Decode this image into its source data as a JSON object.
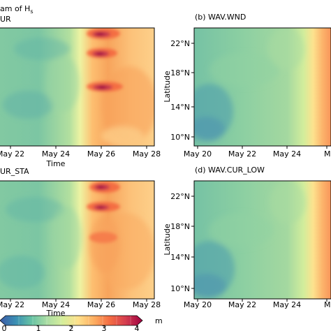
{
  "figure": {
    "top_left_title_fragment": "am of H",
    "top_left_title_subscript": "s",
    "colorbar_unit": "m"
  },
  "colors": {
    "colormap": [
      "#3d5aa6",
      "#3b8fb4",
      "#66c2a4",
      "#abdda4",
      "#d6ee9b",
      "#fee08b",
      "#fdae61",
      "#f46d43",
      "#d53e4f",
      "#9e0142"
    ]
  },
  "chart_data": [
    {
      "type": "heatmap",
      "panel_label": "UR",
      "xlabel": "Time",
      "ylabel": "",
      "x_ticks": [
        "May 22",
        "May 24",
        "May 26",
        "May 28"
      ],
      "y_ticks": [],
      "visible_x_range": [
        "May 20",
        "May 28"
      ],
      "ylim": [
        8.5,
        24.5
      ],
      "value_range": [
        0,
        4
      ],
      "features": "strong maxima of about 4 m near May 26 at about 23.5, 20.5 and 16.5 N"
    },
    {
      "type": "heatmap",
      "panel_label": "(b) WAV.WND",
      "xlabel": "",
      "ylabel": "Latitude",
      "x_ticks": [
        "May 20",
        "May 22",
        "May 24",
        "M"
      ],
      "y_ticks": [
        "22°N",
        "18°N",
        "14°N",
        "10°N"
      ],
      "ylim": [
        8.5,
        24.5
      ],
      "value_range": [
        0,
        4
      ],
      "features": "smooth field, higher values near right edge"
    },
    {
      "type": "heatmap",
      "panel_label": "UR_STA",
      "xlabel": "Time",
      "ylabel": "",
      "x_ticks": [
        "May 22",
        "May 24",
        "May 26",
        "May 28"
      ],
      "y_ticks": [],
      "ylim": [
        8.5,
        24.5
      ],
      "value_range": [
        0,
        4
      ],
      "features": "maxima near May 26 at about 23.5 and 20.5 N"
    },
    {
      "type": "heatmap",
      "panel_label": "(d) WAV.CUR_LOW",
      "xlabel": "",
      "ylabel": "Latitude",
      "x_ticks": [
        "May 20",
        "May 22",
        "May 24",
        "M"
      ],
      "y_ticks": [
        "22°N",
        "18°N",
        "14°N",
        "10°N"
      ],
      "ylim": [
        8.5,
        24.5
      ],
      "value_range": [
        0,
        4
      ],
      "features": "smooth field, higher values near right edge"
    },
    {
      "type": "colorbar",
      "ticks": [
        "0",
        "1",
        "2",
        "3",
        "4"
      ],
      "range": [
        0,
        4
      ],
      "unit": "m"
    }
  ]
}
